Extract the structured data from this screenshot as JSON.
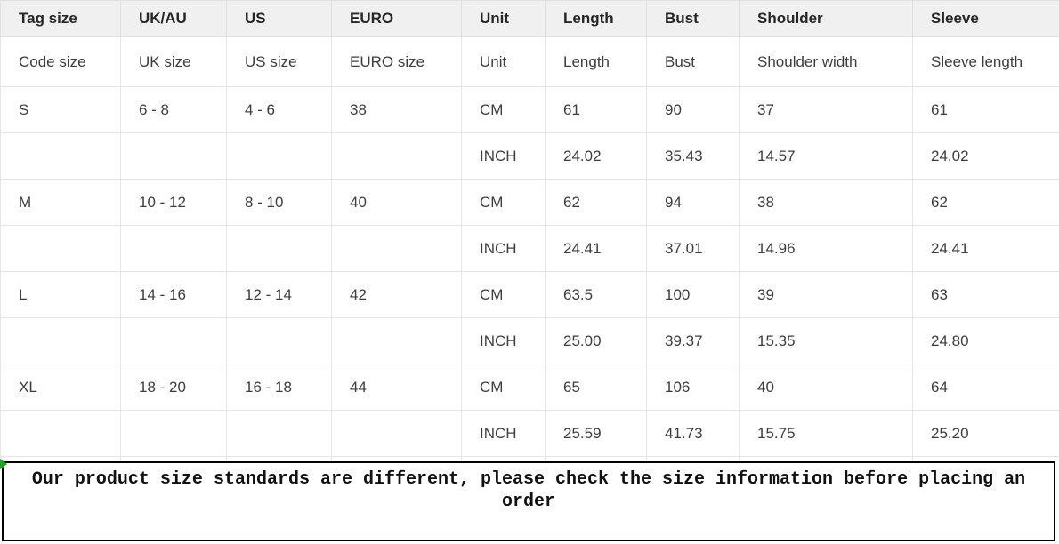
{
  "table": {
    "headers": [
      "Tag size",
      "UK/AU",
      "US",
      "EURO",
      "Unit",
      "Length",
      "Bust",
      "Shoulder",
      "Sleeve"
    ],
    "subheaders": [
      "Code size",
      "UK size",
      "US size",
      "EURO size",
      "Unit",
      "Length",
      "Bust",
      "Shoulder width",
      "Sleeve length"
    ],
    "rows": [
      [
        "S",
        "6 - 8",
        "4 - 6",
        "38",
        "CM",
        "61",
        "90",
        "37",
        "61"
      ],
      [
        "",
        "",
        "",
        "",
        "INCH",
        "24.02",
        "35.43",
        "14.57",
        "24.02"
      ],
      [
        "M",
        "10 - 12",
        "8 - 10",
        "40",
        "CM",
        "62",
        "94",
        "38",
        "62"
      ],
      [
        "",
        "",
        "",
        "",
        "INCH",
        "24.41",
        "37.01",
        "14.96",
        "24.41"
      ],
      [
        "L",
        "14 - 16",
        "12 - 14",
        "42",
        "CM",
        "63.5",
        "100",
        "39",
        "63"
      ],
      [
        "",
        "",
        "",
        "",
        "INCH",
        "25.00",
        "39.37",
        "15.35",
        "24.80"
      ],
      [
        "XL",
        "18 - 20",
        "16 - 18",
        "44",
        "CM",
        "65",
        "106",
        "40",
        "64"
      ],
      [
        "",
        "",
        "",
        "",
        "INCH",
        "25.59",
        "41.73",
        "15.75",
        "25.20"
      ]
    ]
  },
  "notice": {
    "text": "Our product size standards are different, please check the size information before placing an order"
  },
  "colors": {
    "header_bg": "#f0f0f0",
    "grid_border": "#e4e4e4",
    "body_text": "#3d3d3d",
    "header_text": "#262626",
    "notice_border": "#000000",
    "notice_text": "#111111",
    "corner_artifact_green": "#2e9b2e"
  }
}
